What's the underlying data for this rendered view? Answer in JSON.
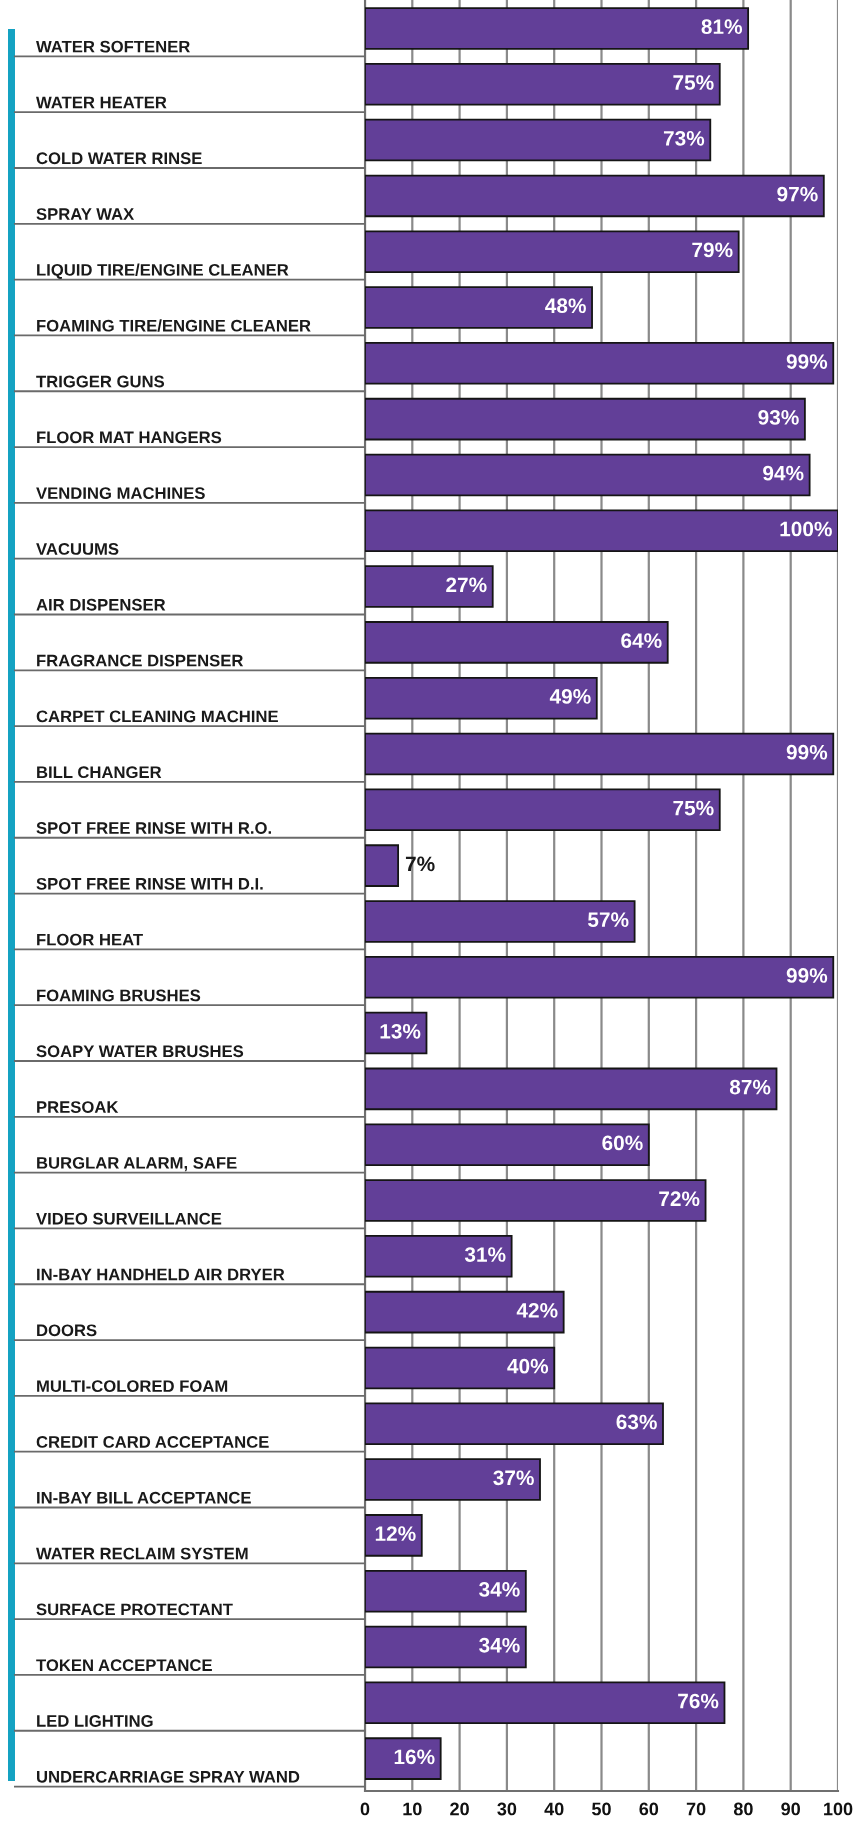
{
  "chart_data": {
    "type": "bar",
    "orientation": "horizontal",
    "categories": [
      "WATER SOFTENER",
      "WATER HEATER",
      "COLD WATER RINSE",
      "SPRAY WAX",
      "LIQUID TIRE/ENGINE CLEANER",
      "FOAMING TIRE/ENGINE CLEANER",
      "TRIGGER GUNS",
      "FLOOR MAT HANGERS",
      "VENDING MACHINES",
      "VACUUMS",
      "AIR DISPENSER",
      "FRAGRANCE DISPENSER",
      "CARPET CLEANING MACHINE",
      "BILL CHANGER",
      "SPOT FREE RINSE WITH R.O.",
      "SPOT FREE RINSE WITH D.I.",
      "FLOOR HEAT",
      "FOAMING BRUSHES",
      "SOAPY WATER BRUSHES",
      "PRESOAK",
      "BURGLAR ALARM, SAFE",
      "VIDEO SURVEILLANCE",
      "IN-BAY HANDHELD AIR DRYER",
      "DOORS",
      "MULTI-COLORED FOAM",
      "CREDIT CARD ACCEPTANCE",
      "IN-BAY BILL ACCEPTANCE",
      "WATER RECLAIM SYSTEM",
      "SURFACE PROTECTANT",
      "TOKEN ACCEPTANCE",
      "LED LIGHTING",
      "UNDERCARRIAGE SPRAY WAND"
    ],
    "values": [
      81,
      75,
      73,
      97,
      79,
      48,
      99,
      93,
      94,
      100,
      27,
      64,
      49,
      99,
      75,
      7,
      57,
      99,
      13,
      87,
      60,
      72,
      31,
      42,
      40,
      63,
      37,
      12,
      34,
      34,
      76,
      16
    ],
    "value_labels": [
      "81%",
      "75%",
      "73%",
      "97%",
      "79%",
      "48%",
      "99%",
      "93%",
      "94%",
      "100%",
      "27%",
      "64%",
      "49%",
      "99%",
      "75%",
      "7%",
      "57%",
      "99%",
      "13%",
      "87%",
      "60%",
      "72%",
      "31%",
      "42%",
      "40%",
      "63%",
      "37%",
      "12%",
      "34%",
      "34%",
      "76%",
      "16%"
    ],
    "color": "#623f98",
    "xlim": [
      0,
      100
    ],
    "xticks": [
      0,
      10,
      20,
      30,
      40,
      50,
      60,
      70,
      80,
      90,
      100
    ],
    "grid": "x"
  }
}
